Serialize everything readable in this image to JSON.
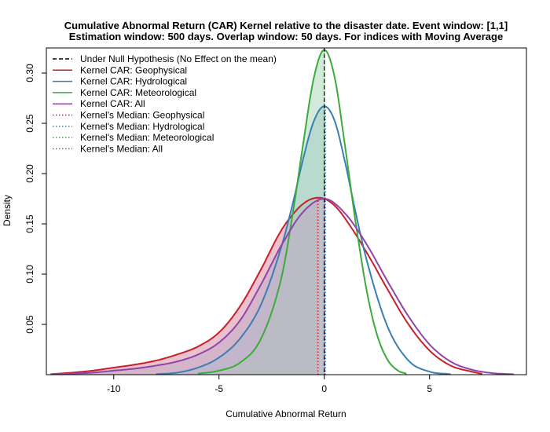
{
  "chart_data": {
    "type": "area",
    "title": "Cumulative Abnormal Return (CAR) Kernel relative to the disaster date. Event window: [1,1]",
    "subtitle": "Estimation window: 500 days. Overlap window: 50 days. For indices with Moving Average",
    "xlabel": "Cumulative Abnormal Return",
    "ylabel": "Density",
    "xlim": [
      -13.2,
      9.6
    ],
    "ylim": [
      0,
      0.325
    ],
    "x_ticks": [
      -10,
      -5,
      0,
      5
    ],
    "y_ticks": [
      0.05,
      0.1,
      0.15,
      0.2,
      0.25,
      0.3
    ],
    "grid": false,
    "legend_position": "top-left",
    "null_hypothesis": {
      "name": "Under Null Hypothesis (No Effect on the mean)",
      "x": 0,
      "color": "#000000",
      "style": "dashed"
    },
    "series": [
      {
        "name": "Kernel CAR: Geophysical",
        "color": "#C8202A",
        "fill": "#D7839C",
        "x": [
          -13,
          -12,
          -11,
          -10,
          -9,
          -8,
          -7,
          -6,
          -5,
          -4,
          -3,
          -2,
          -1,
          -0.3,
          0,
          0.5,
          1,
          2,
          3,
          4,
          5,
          6,
          7,
          7.5
        ],
        "y": [
          0.0005,
          0.002,
          0.004,
          0.007,
          0.01,
          0.014,
          0.02,
          0.028,
          0.042,
          0.068,
          0.105,
          0.145,
          0.17,
          0.176,
          0.175,
          0.168,
          0.155,
          0.122,
          0.085,
          0.05,
          0.024,
          0.009,
          0.003,
          0.0008
        ],
        "median": -0.3,
        "median_name": "Kernel's Median: Geophysical"
      },
      {
        "name": "Kernel CAR: Hydrological",
        "color": "#3A7FB3",
        "fill": "#9CC4D2",
        "x": [
          -8,
          -7,
          -6,
          -5,
          -4,
          -3,
          -2,
          -1.5,
          -1,
          -0.5,
          0,
          0.5,
          1,
          1.5,
          2,
          3,
          4,
          5,
          6
        ],
        "y": [
          0.0005,
          0.002,
          0.007,
          0.017,
          0.036,
          0.07,
          0.13,
          0.17,
          0.215,
          0.252,
          0.267,
          0.252,
          0.21,
          0.16,
          0.115,
          0.048,
          0.014,
          0.003,
          0.0005
        ],
        "median": 0.05,
        "median_name": "Kernel's Median: Hydrological"
      },
      {
        "name": "Kernel CAR: Meteorological",
        "color": "#3DAA3D",
        "fill": "#A6D6B6",
        "x": [
          -6,
          -5,
          -4,
          -3,
          -2,
          -1.5,
          -1,
          -0.5,
          0,
          0.5,
          1,
          1.5,
          2,
          2.5,
          3,
          3.5,
          3.9
        ],
        "y": [
          0.001,
          0.004,
          0.012,
          0.036,
          0.1,
          0.16,
          0.23,
          0.295,
          0.323,
          0.295,
          0.225,
          0.15,
          0.085,
          0.04,
          0.015,
          0.004,
          0.001
        ],
        "median": 0.0,
        "median_name": "Kernel's Median: Meteorological"
      },
      {
        "name": "Kernel CAR: All",
        "color": "#8E44AD",
        "fill": "#BFA9C6",
        "x": [
          -13,
          -12,
          -11,
          -10,
          -9,
          -8,
          -7,
          -6,
          -5,
          -4,
          -3,
          -2,
          -1,
          0,
          1,
          2,
          3,
          4,
          5,
          6,
          7,
          8,
          9
        ],
        "y": [
          0.0003,
          0.001,
          0.002,
          0.004,
          0.006,
          0.009,
          0.013,
          0.02,
          0.032,
          0.054,
          0.09,
          0.13,
          0.162,
          0.175,
          0.16,
          0.13,
          0.093,
          0.058,
          0.03,
          0.013,
          0.005,
          0.0015,
          0.0004
        ],
        "median": 0.0,
        "median_name": "Kernel's Median: All"
      }
    ]
  }
}
